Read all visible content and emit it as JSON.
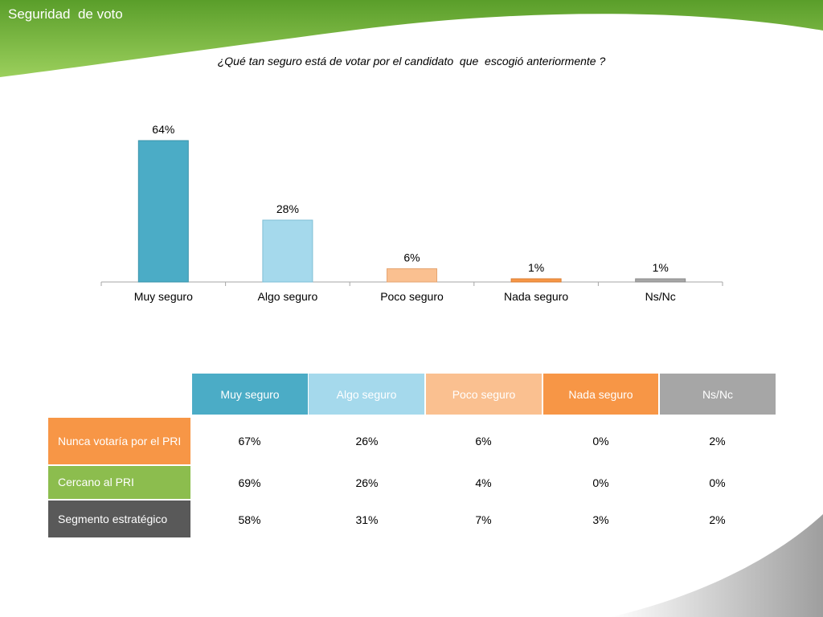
{
  "slide": {
    "title": "Seguridad  de voto",
    "question": "¿Qué tan seguro está de votar por el candidato  que  escogió anteriormente ?"
  },
  "colors": {
    "muy_seguro": "#4bacc6",
    "algo_seguro": "#a5d9ec",
    "poco_seguro": "#fac090",
    "nada_seguro": "#f79646",
    "ns_nc": "#a6a6a6",
    "nunca": "#f79646",
    "cercano": "#8cbd4e",
    "segmento": "#595959",
    "header_green": "#7cb342"
  },
  "chart_data": {
    "type": "bar",
    "categories": [
      "Muy seguro",
      "Algo seguro",
      "Poco seguro",
      "Nada seguro",
      "Ns/Nc"
    ],
    "values": [
      64,
      28,
      6,
      1,
      1
    ],
    "value_labels": [
      "64%",
      "28%",
      "6%",
      "1%",
      "1%"
    ],
    "ylim": [
      0,
      64
    ],
    "grid": false,
    "legend": "none"
  },
  "table": {
    "headers": [
      "Muy seguro",
      "Algo seguro",
      "Poco seguro",
      "Nada seguro",
      "Ns/Nc"
    ],
    "rows": [
      {
        "label": "Nunca votaría por el PRI",
        "values": [
          "67%",
          "26%",
          "6%",
          "0%",
          "2%"
        ]
      },
      {
        "label": "Cercano al PRI",
        "values": [
          "69%",
          "26%",
          "4%",
          "0%",
          "0%"
        ]
      },
      {
        "label": "Segmento estratégico",
        "values": [
          "58%",
          "31%",
          "7%",
          "3%",
          "2%"
        ]
      }
    ]
  }
}
